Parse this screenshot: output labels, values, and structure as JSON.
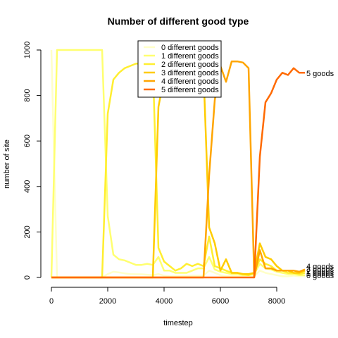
{
  "chart_data": {
    "type": "line",
    "title": "Number of different good type",
    "xlabel": "timestep",
    "ylabel": "number of site",
    "xlim": [
      0,
      9500
    ],
    "ylim": [
      0,
      1000
    ],
    "x_ticks": [
      0,
      2000,
      4000,
      6000,
      8000
    ],
    "y_ticks": [
      0,
      200,
      400,
      600,
      800,
      1000
    ],
    "legend_position": "top-center",
    "grid": false,
    "x": [
      0,
      200,
      400,
      600,
      800,
      1000,
      1200,
      1400,
      1600,
      1800,
      2000,
      2200,
      2400,
      2600,
      2800,
      3000,
      3200,
      3400,
      3600,
      3800,
      4000,
      4200,
      4400,
      4600,
      4800,
      5000,
      5200,
      5400,
      5600,
      5800,
      6000,
      6200,
      6400,
      6600,
      6800,
      7000,
      7200,
      7400,
      7600,
      7800,
      8000,
      8200,
      8400,
      8600,
      8800,
      9000
    ],
    "series": [
      {
        "name": "0 different goods",
        "color": "#ffffc8",
        "end_label": "0 goods",
        "values": [
          1000,
          0,
          0,
          0,
          0,
          0,
          0,
          0,
          0,
          0,
          15,
          25,
          22,
          18,
          15,
          14,
          14,
          12,
          10,
          15,
          8,
          5,
          5,
          5,
          6,
          8,
          8,
          8,
          30,
          20,
          10,
          5,
          5,
          5,
          5,
          5,
          5,
          30,
          20,
          15,
          10,
          5,
          5,
          8,
          5,
          5
        ]
      },
      {
        "name": "1 different goods",
        "color": "#ffff70",
        "end_label": "1 goods",
        "values": [
          0,
          1000,
          1000,
          1000,
          1000,
          1000,
          1000,
          1000,
          1000,
          1000,
          270,
          100,
          80,
          75,
          65,
          55,
          55,
          60,
          55,
          90,
          30,
          30,
          20,
          20,
          20,
          30,
          40,
          40,
          90,
          35,
          25,
          20,
          15,
          15,
          10,
          10,
          15,
          60,
          40,
          35,
          25,
          20,
          15,
          15,
          10,
          10
        ]
      },
      {
        "name": "2 different goods",
        "color": "#ffee30",
        "end_label": "2 goods",
        "values": [
          0,
          0,
          0,
          0,
          0,
          0,
          0,
          0,
          0,
          0,
          720,
          870,
          900,
          920,
          930,
          940,
          940,
          940,
          940,
          130,
          70,
          50,
          30,
          40,
          60,
          50,
          60,
          50,
          180,
          50,
          40,
          30,
          20,
          20,
          15,
          10,
          20,
          80,
          60,
          50,
          30,
          30,
          20,
          20,
          15,
          20
        ]
      },
      {
        "name": "3 different goods",
        "color": "#ffcc00",
        "end_label": "3 goods",
        "values": [
          0,
          0,
          0,
          0,
          0,
          0,
          0,
          0,
          0,
          0,
          0,
          0,
          0,
          0,
          0,
          0,
          0,
          0,
          0,
          750,
          880,
          900,
          920,
          930,
          920,
          920,
          910,
          910,
          220,
          150,
          30,
          80,
          20,
          20,
          15,
          15,
          20,
          150,
          90,
          80,
          50,
          30,
          30,
          20,
          20,
          30
        ]
      },
      {
        "name": "4 different goods",
        "color": "#ffa500",
        "end_label": "4 goods",
        "values": [
          0,
          0,
          0,
          0,
          0,
          0,
          0,
          0,
          0,
          0,
          0,
          0,
          0,
          0,
          0,
          0,
          0,
          0,
          0,
          0,
          0,
          0,
          0,
          0,
          0,
          0,
          0,
          0,
          450,
          780,
          930,
          860,
          950,
          950,
          945,
          920,
          0,
          120,
          40,
          40,
          30,
          30,
          30,
          30,
          25,
          35
        ]
      },
      {
        "name": "5 different goods",
        "color": "#ff6a00",
        "end_label": "5 goods",
        "values": [
          0,
          0,
          0,
          0,
          0,
          0,
          0,
          0,
          0,
          0,
          0,
          0,
          0,
          0,
          0,
          0,
          0,
          0,
          0,
          0,
          0,
          0,
          0,
          0,
          0,
          0,
          0,
          0,
          0,
          0,
          0,
          0,
          0,
          0,
          0,
          0,
          0,
          530,
          770,
          810,
          870,
          900,
          890,
          920,
          900,
          900
        ]
      }
    ]
  }
}
